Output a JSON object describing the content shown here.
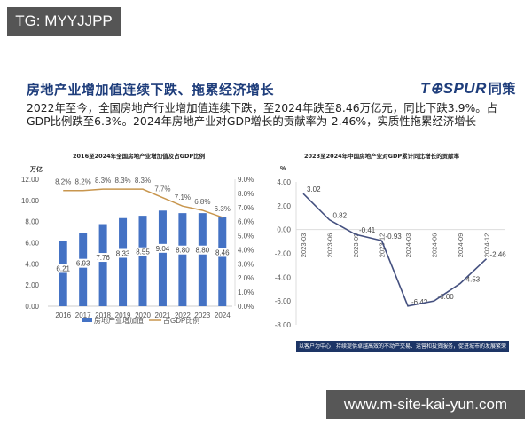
{
  "overlay": {
    "tag_label": "TG: MYYJJPP",
    "site_label": "www.m-site-kai-yun.com"
  },
  "slide": {
    "title": "房地产业增加值连续下跌、拖累经济增长",
    "logo_text": "T⊕SPUR",
    "logo_cn": "同策",
    "body_line1": "2022年至今，全国房地产行业增加值连续下跌，至2024年跌至8.46万亿元，同比下跌3.9%。占",
    "body_line2": "GDP比例跌至6.3%。2024年房地产业对GDP增长的贡献率为-2.46%，实质性拖累经济增长",
    "footer_slogan": "以客户为中心，持续提供卓越高效的不动产交易、运营和投资服务，促进城市的发展繁荣"
  },
  "colors": {
    "bar": "#4472c4",
    "ratio_line": "#c8964e",
    "contribution_line": "#44507f",
    "title": "#1e3d7b",
    "footer_bg": "#1d3566"
  },
  "chart_data": [
    {
      "type": "bar",
      "title": "2016至2024年全国房地产业增加值及占GDP比例",
      "ylabel": "万亿",
      "categories": [
        "2016",
        "2017",
        "2018",
        "2019",
        "2020",
        "2021",
        "2022",
        "2023",
        "2024"
      ],
      "series": [
        {
          "name": "房地产业增加值",
          "type": "bar",
          "axis": "left",
          "values": [
            6.21,
            6.93,
            7.76,
            8.33,
            8.55,
            9.04,
            8.8,
            8.8,
            8.46
          ]
        },
        {
          "name": "占GDP比例",
          "type": "line",
          "axis": "right",
          "values": [
            8.2,
            8.2,
            8.3,
            8.3,
            8.3,
            7.7,
            7.1,
            6.8,
            6.3
          ],
          "labels": [
            "8.2%",
            "8.2%",
            "8.3%",
            "8.3%",
            "8.3%",
            "7.7%",
            "7.1%",
            "6.8%",
            "6.3%"
          ]
        }
      ],
      "ylim": [
        0,
        12
      ],
      "y_ticks": [
        "0.00",
        "2.00",
        "4.00",
        "6.00",
        "8.00",
        "10.00",
        "12.00"
      ],
      "y2lim": [
        0,
        9
      ],
      "y2_ticks": [
        "0.0%",
        "1.0%",
        "2.0%",
        "3.0%",
        "4.0%",
        "5.0%",
        "6.0%",
        "7.0%",
        "8.0%",
        "9.0%"
      ],
      "legend": [
        "房地产业增加值",
        "占GDP比例"
      ],
      "legend_position": "bottom",
      "grid": false
    },
    {
      "type": "line",
      "title": "2023至2024年中国房地产业对GDP累计同比增长的贡献率",
      "ylabel": "%",
      "categories": [
        "2023-03",
        "2023-06",
        "2023-09",
        "2023-12",
        "2024-03",
        "2024-06",
        "2024-09",
        "2024-12"
      ],
      "series": [
        {
          "name": "贡献率",
          "values": [
            3.02,
            0.82,
            -0.41,
            -0.93,
            -6.42,
            -6.0,
            -4.53,
            -2.46
          ],
          "labels": [
            "3.02",
            "0.82",
            "-0.41",
            "-0.93",
            "-6.42",
            "-6.00",
            "-4.53",
            "-2.46"
          ]
        }
      ],
      "ylim": [
        -8,
        4
      ],
      "y_ticks": [
        "4.00",
        "2.00",
        "0.00",
        "-2.00",
        "-4.00",
        "-6.00",
        "-8.00"
      ],
      "grid": false
    }
  ]
}
